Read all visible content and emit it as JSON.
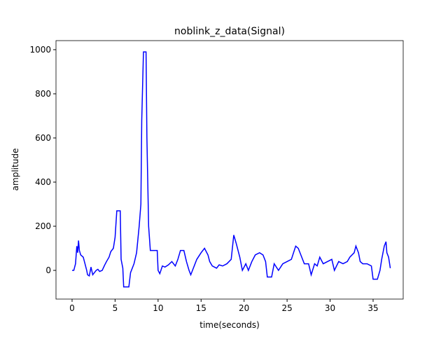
{
  "chart_data": {
    "type": "line",
    "title": "noblink_z_data(Signal)",
    "x_label": "time(seconds)",
    "y_label": "amplitude",
    "x": [
      0,
      0.2,
      0.4,
      0.55,
      0.65,
      0.75,
      0.85,
      1.0,
      1.3,
      1.5,
      1.7,
      1.8,
      2.0,
      2.2,
      2.4,
      2.6,
      2.8,
      3.0,
      3.2,
      3.5,
      3.8,
      4.0,
      4.3,
      4.5,
      4.8,
      5.0,
      5.2,
      5.6,
      5.7,
      5.9,
      6.0,
      6.6,
      6.8,
      7.2,
      7.5,
      7.8,
      8.0,
      8.1,
      8.3,
      8.6,
      8.7,
      8.9,
      9.1,
      9.9,
      10.0,
      10.2,
      10.5,
      10.8,
      11.2,
      11.6,
      12.0,
      12.3,
      12.6,
      13.0,
      13.3,
      13.6,
      13.8,
      14.1,
      14.5,
      15.0,
      15.4,
      15.8,
      16.0,
      16.3,
      16.8,
      17.1,
      17.5,
      18.0,
      18.5,
      18.8,
      19.1,
      19.5,
      19.8,
      20.2,
      20.5,
      20.9,
      21.3,
      21.8,
      22.2,
      22.5,
      22.7,
      23.2,
      23.5,
      24.0,
      24.5,
      25.0,
      25.5,
      26.0,
      26.3,
      26.8,
      27.0,
      27.5,
      27.8,
      28.2,
      28.5,
      28.8,
      29.2,
      29.7,
      30.2,
      30.5,
      31.0,
      31.5,
      32.0,
      32.3,
      32.8,
      33.0,
      33.3,
      33.5,
      33.8,
      34.3,
      34.8,
      35.0,
      35.5,
      35.8,
      36.0,
      36.3,
      36.5,
      36.6,
      36.8,
      37.0
    ],
    "series": [
      {
        "name": "Signal",
        "color": "#0000ff",
        "values": [
          0,
          0,
          30,
          110,
          80,
          135,
          90,
          70,
          60,
          30,
          0,
          -20,
          -25,
          15,
          -20,
          -10,
          0,
          5,
          -5,
          0,
          25,
          40,
          60,
          85,
          100,
          150,
          270,
          270,
          50,
          10,
          -75,
          -75,
          -10,
          30,
          80,
          200,
          300,
          680,
          990,
          990,
          600,
          200,
          90,
          90,
          0,
          -15,
          20,
          15,
          25,
          40,
          20,
          50,
          90,
          90,
          40,
          0,
          -20,
          10,
          50,
          80,
          100,
          70,
          40,
          20,
          10,
          25,
          20,
          30,
          50,
          160,
          120,
          60,
          0,
          30,
          0,
          40,
          70,
          80,
          70,
          40,
          -30,
          -30,
          30,
          0,
          30,
          40,
          50,
          110,
          100,
          50,
          30,
          30,
          -20,
          30,
          20,
          60,
          30,
          40,
          50,
          0,
          40,
          30,
          40,
          60,
          80,
          110,
          80,
          40,
          30,
          30,
          20,
          -40,
          -40,
          0,
          50,
          110,
          130,
          80,
          60,
          10
        ]
      }
    ],
    "xlim": [
      -1.87,
      38.5
    ],
    "ylim": [
      -130,
      1041
    ],
    "xticks": [
      0,
      5,
      10,
      15,
      20,
      25,
      30,
      35
    ],
    "yticks": [
      0,
      200,
      400,
      600,
      800,
      1000
    ]
  }
}
